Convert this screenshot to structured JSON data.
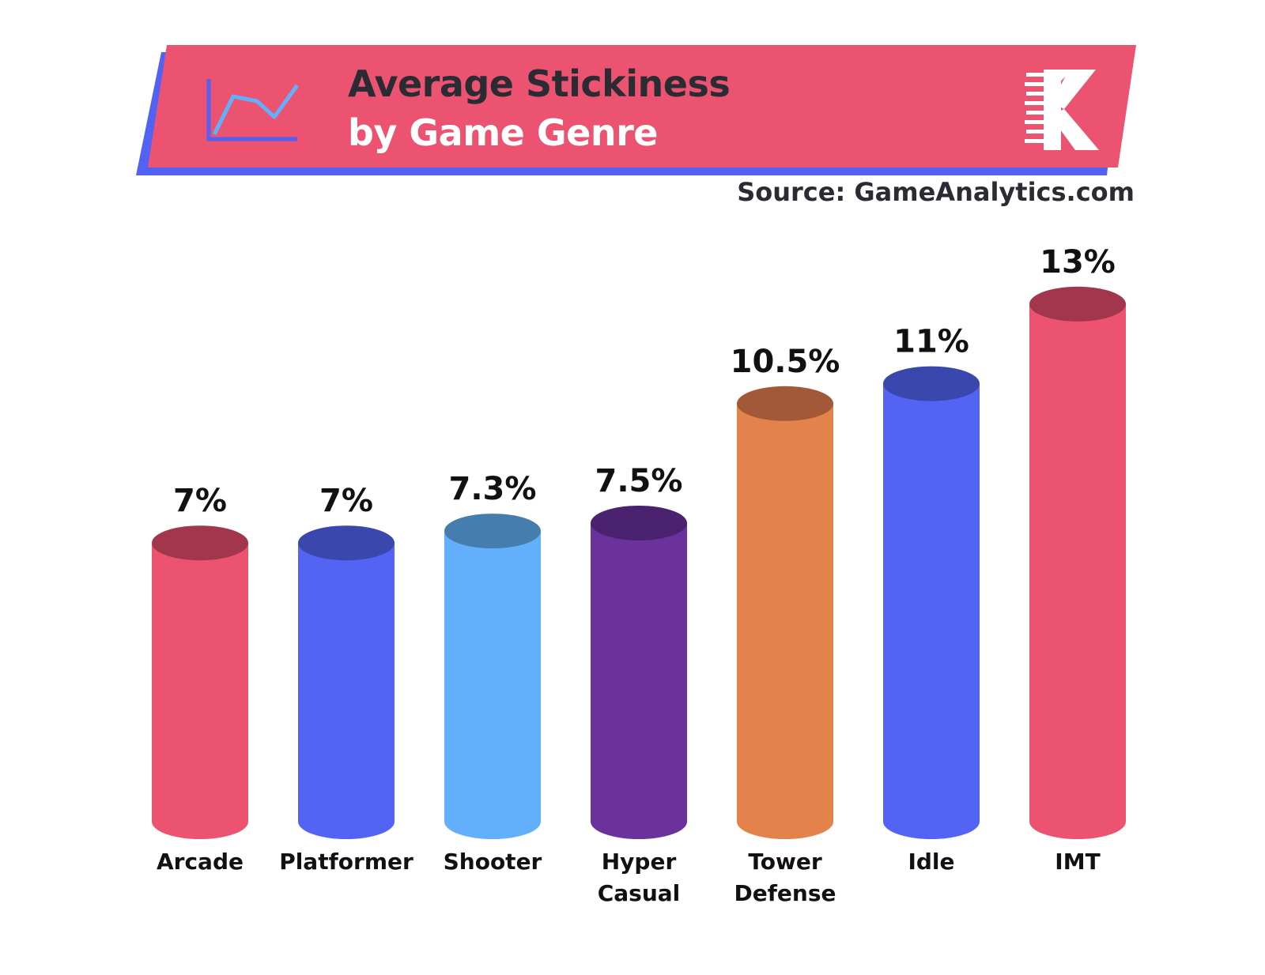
{
  "header": {
    "title_line1": "Average Stickiness",
    "title_line2": "by Game Genre",
    "source": "Source: GameAnalytics.com",
    "banner_color": "#ec5370",
    "shadow_color": "#5162f5",
    "icon": "line-chart-icon",
    "logo": "k-logo"
  },
  "chart_data": {
    "type": "bar",
    "title": "Average Stickiness by Game Genre",
    "categories": [
      "Arcade",
      "Platformer",
      "Shooter",
      "Hyper Casual",
      "Tower Defense",
      "Idle",
      "IMT"
    ],
    "values": [
      7,
      7,
      7.3,
      7.5,
      10.5,
      11,
      13
    ],
    "value_labels": [
      "7%",
      "7%",
      "7.3%",
      "7.5%",
      "10.5%",
      "11%",
      "13%"
    ],
    "unit": "%",
    "ylim": [
      0,
      14
    ],
    "grid": false,
    "bar_style": "cylinder",
    "colors": [
      "#ec5370",
      "#5363f4",
      "#62b0fb",
      "#6b329c",
      "#e4824b",
      "#5363f4",
      "#ec5370"
    ],
    "top_colors": [
      "#a2364c",
      "#3a47ac",
      "#457daf",
      "#4a226f",
      "#a35937",
      "#3a47ac",
      "#a2364c"
    ]
  }
}
